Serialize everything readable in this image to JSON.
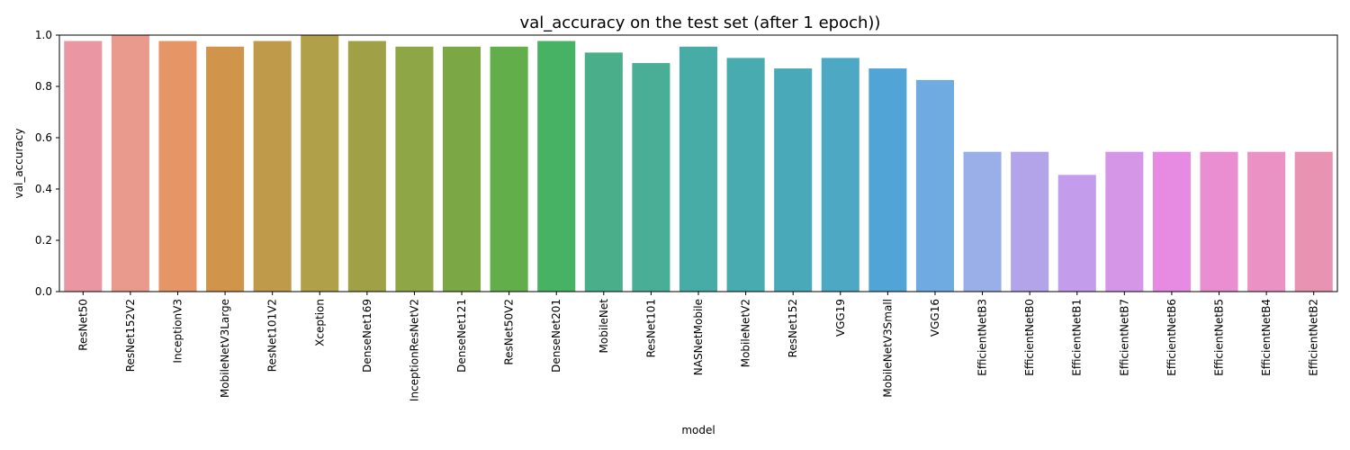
{
  "chart_data": {
    "type": "bar",
    "title": "val_accuracy on the test set (after 1 epoch))",
    "xlabel": "model",
    "ylabel": "val_accuracy",
    "ylim": [
      0,
      1.0
    ],
    "yticks": [
      "0.0",
      "0.2",
      "0.4",
      "0.6",
      "0.8",
      "1.0"
    ],
    "grid": false,
    "legend": "none",
    "categories": [
      "ResNet50",
      "ResNet152V2",
      "InceptionV3",
      "MobileNetV3Large",
      "ResNet101V2",
      "Xception",
      "DenseNet169",
      "InceptionResNetV2",
      "DenseNet121",
      "ResNet50V2",
      "DenseNet201",
      "MobileNet",
      "ResNet101",
      "NASNetMobile",
      "MobileNetV2",
      "ResNet152",
      "VGG19",
      "MobileNetV3Small",
      "VGG16",
      "EfficientNetB3",
      "EfficientNetB0",
      "EfficientNetB1",
      "EfficientNetB7",
      "EfficientNetB6",
      "EfficientNetB5",
      "EfficientNetB4",
      "EfficientNetB2"
    ],
    "values": [
      0.977,
      1.0,
      0.977,
      0.955,
      0.977,
      1.0,
      0.977,
      0.955,
      0.955,
      0.955,
      0.977,
      0.932,
      0.891,
      0.955,
      0.911,
      0.87,
      0.911,
      0.87,
      0.825,
      0.545,
      0.545,
      0.455,
      0.545,
      0.545,
      0.545,
      0.545,
      0.545
    ],
    "colors": [
      "#ea96a3",
      "#e99a8c",
      "#e69566",
      "#d0954b",
      "#c09a4b",
      "#afa049",
      "#a0a046",
      "#8ea645",
      "#7ba845",
      "#61ae4a",
      "#48b264",
      "#4aae8a",
      "#4aae97",
      "#47aca6",
      "#48abb0",
      "#4aa9b8",
      "#4ca8c3",
      "#50a5d6",
      "#6faae0",
      "#9aaee7",
      "#b3a4ea",
      "#c39cec",
      "#d596e8",
      "#e78ae2",
      "#e98ed0",
      "#ea92c3",
      "#e893b1"
    ]
  }
}
